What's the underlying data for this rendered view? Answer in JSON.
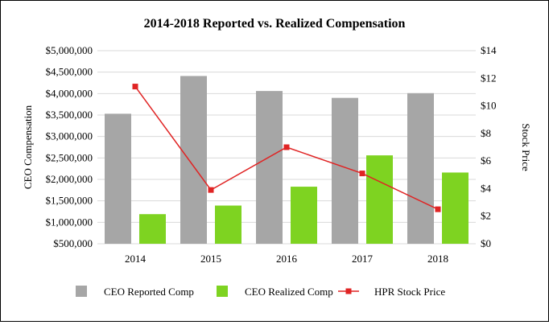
{
  "chart_data": {
    "type": "bar",
    "title": "2014-2018 Reported vs. Realized Compensation",
    "categories": [
      "2014",
      "2015",
      "2016",
      "2017",
      "2018"
    ],
    "series": [
      {
        "name": "CEO Reported Comp",
        "type": "bar",
        "axis": "left",
        "color": "#a6a6a6",
        "values": [
          3530000,
          4410000,
          4060000,
          3900000,
          4010000
        ]
      },
      {
        "name": "CEO Realized Comp",
        "type": "bar",
        "axis": "left",
        "color": "#7ed321",
        "values": [
          1190000,
          1390000,
          1830000,
          2560000,
          2160000
        ]
      },
      {
        "name": "HPR Stock Price",
        "type": "line",
        "axis": "right",
        "color": "#e02424",
        "values": [
          11.4,
          3.9,
          7.0,
          5.1,
          2.5
        ]
      }
    ],
    "ylabel": "CEO Compensation",
    "y2label": "Stock Price",
    "ylim": [
      500000,
      5000000
    ],
    "y2lim": [
      0,
      14
    ],
    "yticks": [
      "$500,000",
      "$1,000,000",
      "$1,500,000",
      "$2,000,000",
      "$2,500,000",
      "$3,000,000",
      "$3,500,000",
      "$4,000,000",
      "$4,500,000",
      "$5,000,000"
    ],
    "y2ticks": [
      "$0",
      "$2",
      "$4",
      "$6",
      "$8",
      "$10",
      "$12",
      "$14"
    ],
    "grid": true,
    "legend": "bottom"
  }
}
